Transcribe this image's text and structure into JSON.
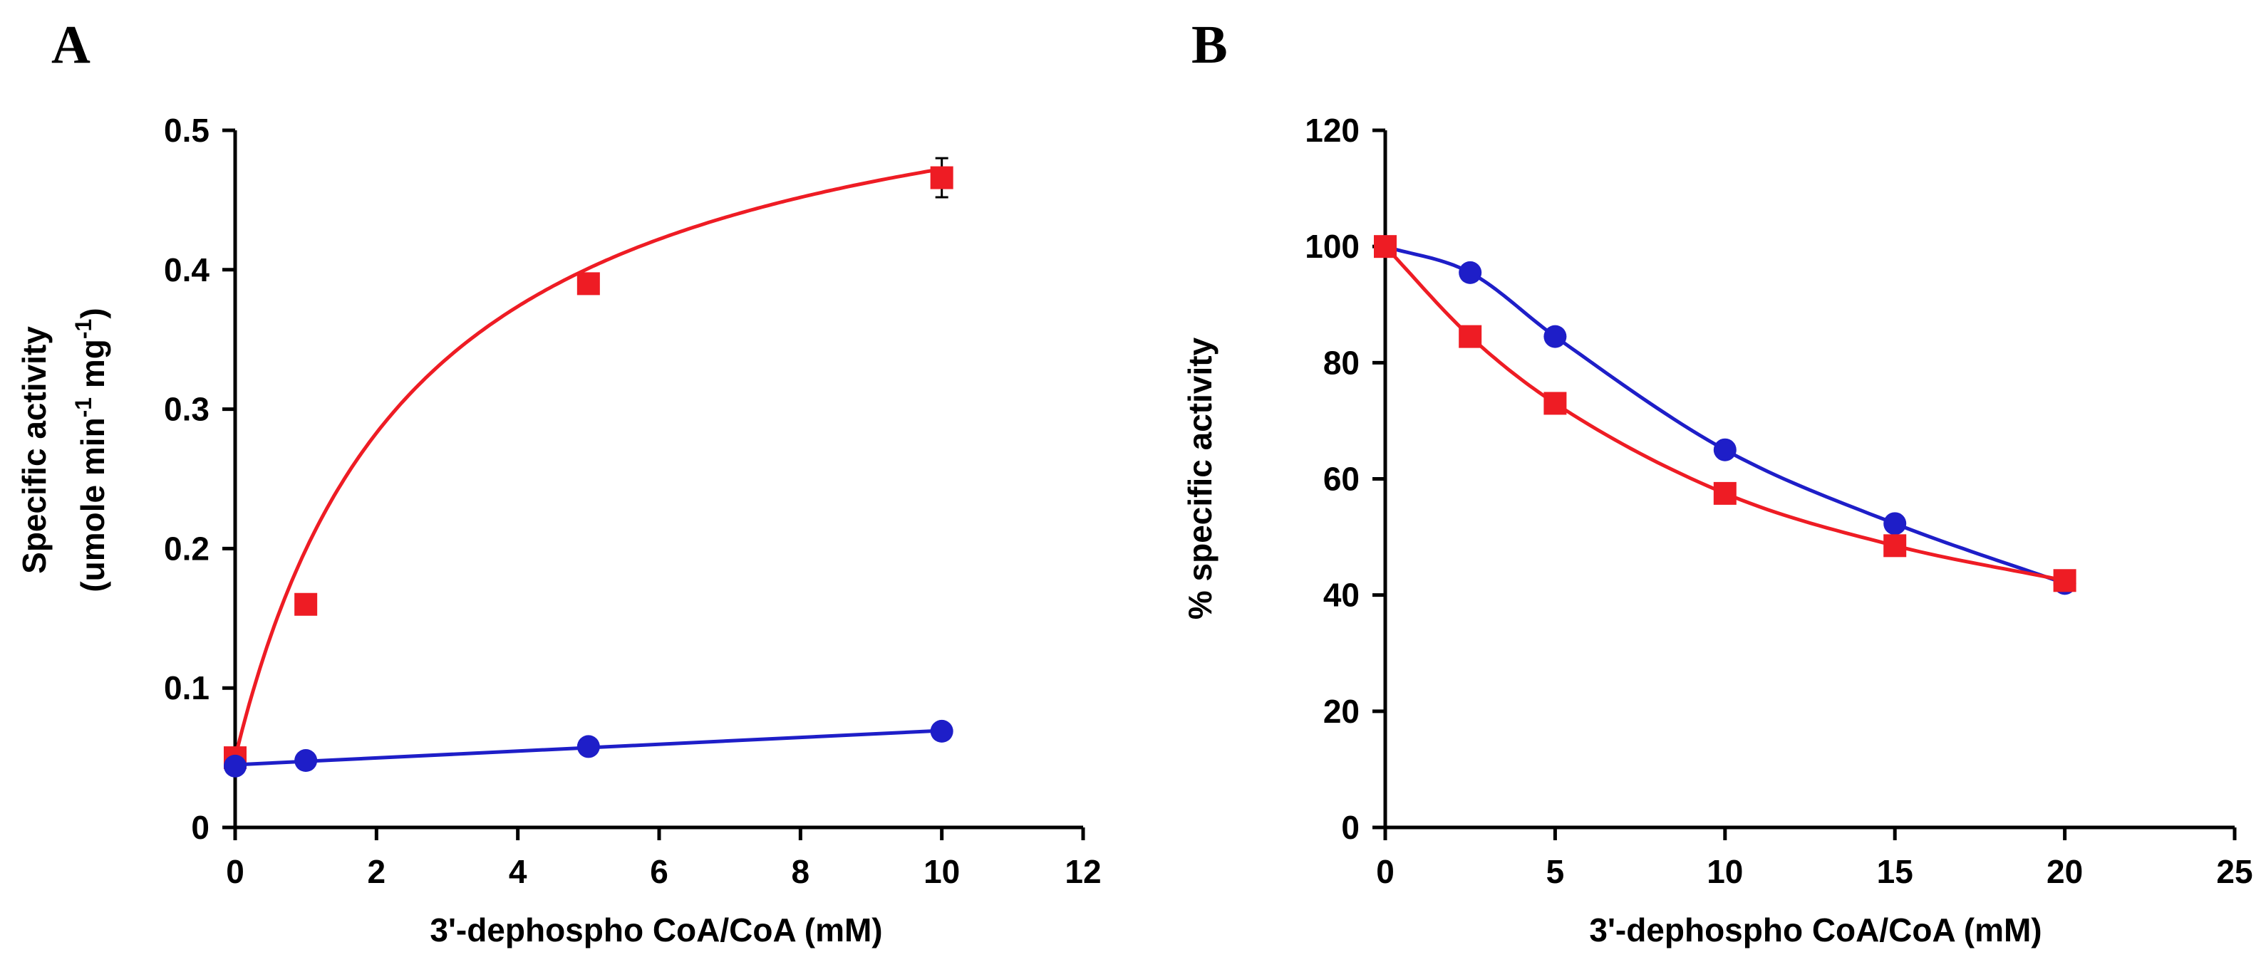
{
  "colors": {
    "red": "#ee1c24",
    "blue": "#1e1ec8",
    "axis": "#000000"
  },
  "chart_data": [
    {
      "type": "line",
      "panel": "A",
      "xlabel": "3'-dephospho CoA/CoA (mM)",
      "ylabel_line1": "Specific activity",
      "ylabel_line2_pre": "(umole min",
      "ylabel_line2_sup1": "-1",
      "ylabel_line2_mid": " mg",
      "ylabel_line2_sup2": "-1",
      "ylabel_line2_post": ")",
      "xlim": [
        0,
        12
      ],
      "ylim": [
        0,
        0.5
      ],
      "xticks": [
        0,
        2,
        4,
        6,
        8,
        10,
        12
      ],
      "yticks": [
        0,
        0.1,
        0.2,
        0.3,
        0.4,
        0.5
      ],
      "xtick_labels": [
        "0",
        "2",
        "4",
        "6",
        "8",
        "10",
        "12"
      ],
      "ytick_labels": [
        "0",
        "0.1",
        "0.2",
        "0.3",
        "0.4",
        "0.5"
      ],
      "series": [
        {
          "name": "red-squares",
          "color": "#ee1c24",
          "marker": "square",
          "x": [
            0,
            1,
            5,
            10
          ],
          "y": [
            0.05,
            0.16,
            0.39,
            0.466
          ],
          "yerr": [
            0,
            0,
            0,
            0.014
          ],
          "fit": "saturation"
        },
        {
          "name": "blue-circles",
          "color": "#1e1ec8",
          "marker": "circle",
          "x": [
            0,
            1,
            5,
            10
          ],
          "y": [
            0.044,
            0.048,
            0.058,
            0.069
          ],
          "fit": "linear"
        }
      ]
    },
    {
      "type": "line",
      "panel": "B",
      "xlabel": "3'-dephospho CoA/CoA (mM)",
      "ylabel": "% specific activity",
      "xlim": [
        0,
        25
      ],
      "ylim": [
        0,
        120
      ],
      "xticks": [
        0,
        5,
        10,
        15,
        20,
        25
      ],
      "yticks": [
        0,
        20,
        40,
        60,
        80,
        100,
        120
      ],
      "xtick_labels": [
        "0",
        "5",
        "10",
        "15",
        "20",
        "25"
      ],
      "ytick_labels": [
        "0",
        "20",
        "40",
        "60",
        "80",
        "100",
        "120"
      ],
      "series": [
        {
          "name": "blue-circles",
          "color": "#1e1ec8",
          "marker": "circle",
          "x": [
            0,
            2.5,
            5,
            10,
            15,
            20
          ],
          "y": [
            100,
            95.5,
            84.5,
            65,
            52.3,
            42
          ]
        },
        {
          "name": "red-squares",
          "color": "#ee1c24",
          "marker": "square",
          "x": [
            0,
            2.5,
            5,
            10,
            15,
            20
          ],
          "y": [
            100,
            84.5,
            73,
            57.5,
            48.5,
            42.5
          ]
        }
      ]
    }
  ]
}
